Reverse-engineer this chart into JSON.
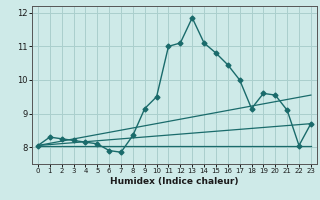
{
  "title": "",
  "xlabel": "Humidex (Indice chaleur)",
  "bg_color": "#ceeae8",
  "grid_color": "#aacfcd",
  "line_color": "#1a6b6b",
  "xlim": [
    -0.5,
    23.5
  ],
  "ylim": [
    7.5,
    12.2
  ],
  "yticks": [
    8,
    9,
    10,
    11,
    12
  ],
  "xticks": [
    0,
    1,
    2,
    3,
    4,
    5,
    6,
    7,
    8,
    9,
    10,
    11,
    12,
    13,
    14,
    15,
    16,
    17,
    18,
    19,
    20,
    21,
    22,
    23
  ],
  "main_x": [
    0,
    1,
    2,
    3,
    4,
    5,
    6,
    7,
    8,
    9,
    10,
    11,
    12,
    13,
    14,
    15,
    16,
    17,
    18,
    19,
    20,
    21,
    22,
    23
  ],
  "main_y": [
    8.05,
    8.3,
    8.25,
    8.2,
    8.15,
    8.1,
    7.9,
    7.85,
    8.35,
    9.15,
    9.5,
    11.0,
    11.1,
    11.85,
    11.1,
    10.8,
    10.45,
    10.0,
    9.15,
    9.6,
    9.55,
    9.1,
    8.05,
    8.7
  ],
  "line1_x": [
    0,
    23
  ],
  "line1_y": [
    8.05,
    8.05
  ],
  "line2_x": [
    0,
    23
  ],
  "line2_y": [
    8.05,
    8.7
  ],
  "line3_x": [
    0,
    23
  ],
  "line3_y": [
    8.05,
    9.55
  ]
}
